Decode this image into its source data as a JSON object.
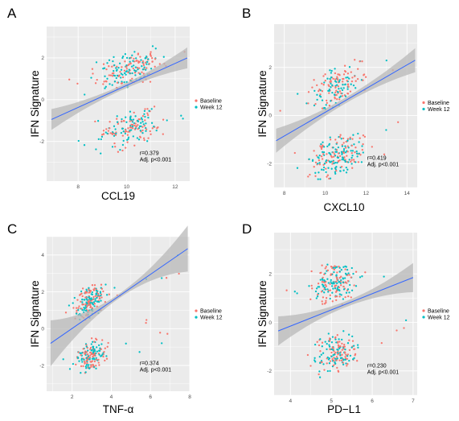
{
  "palette": {
    "baseline": "#F8766D",
    "week12": "#00BFC4",
    "fit": "#3366FF",
    "band": "#B8B8B8",
    "panel_bg": "#EBEBEB",
    "grid": "#FFFFFF"
  },
  "chart_data": [
    {
      "id": "A",
      "type": "scatter",
      "panel_label": "A",
      "xlabel": "CCL19",
      "ylabel": "IFN Signature",
      "xlim": [
        6.7,
        12.6
      ],
      "ylim": [
        -3.9,
        3.5
      ],
      "xticks": [
        8,
        10,
        12
      ],
      "yticks": [
        -2,
        0,
        2
      ],
      "x_center": 10.1,
      "x_spread": 1.05,
      "x_min": 7.0,
      "x_max": 12.4,
      "legend": [
        "Baseline",
        "Week 12"
      ],
      "fit": {
        "x0": 6.9,
        "y0": -0.95,
        "x1": 12.5,
        "y1": 2.0,
        "band_edge": 0.5,
        "band_mid": 0.12
      },
      "annotation": {
        "r": "r=0.379",
        "p": "Adj. p<0.001"
      }
    },
    {
      "id": "B",
      "type": "scatter",
      "panel_label": "B",
      "xlabel": "CXCL10",
      "ylabel": "IFN Signature",
      "xlim": [
        7.5,
        14.5
      ],
      "ylim": [
        -3.0,
        3.8
      ],
      "xticks": [
        8,
        10,
        12,
        14
      ],
      "yticks": [
        -2,
        0,
        2
      ],
      "x_center": 10.6,
      "x_spread": 1.1,
      "x_min": 7.8,
      "x_max": 14.2,
      "legend": [
        "Baseline",
        "Week 12"
      ],
      "fit": {
        "x0": 7.6,
        "y0": -1.05,
        "x1": 14.4,
        "y1": 2.3,
        "band_edge": 0.5,
        "band_mid": 0.12
      },
      "annotation": {
        "r": "r=0.419",
        "p": "Adj. p<0.001"
      }
    },
    {
      "id": "C",
      "type": "scatter",
      "panel_label": "C",
      "xlabel": "TNF-α",
      "ylabel": "IFN Signature",
      "xlim": [
        0.7,
        8.0
      ],
      "ylim": [
        -3.4,
        5.0
      ],
      "xticks": [
        2,
        4,
        6,
        8
      ],
      "yticks": [
        -2,
        0,
        2,
        4
      ],
      "x_center": 2.9,
      "x_spread": 0.6,
      "x_min": 1.5,
      "x_max": 7.6,
      "legend": [
        "Baseline",
        "Week 12"
      ],
      "fit": {
        "x0": 0.9,
        "y0": -0.8,
        "x1": 7.9,
        "y1": 4.35,
        "band_edge": 1.25,
        "band_mid": 0.12
      },
      "annotation": {
        "r": "r=0.374",
        "p": "Adj. p<0.001"
      }
    },
    {
      "id": "D",
      "type": "scatter",
      "panel_label": "D",
      "xlabel": "PD−L1",
      "ylabel": "IFN Signature",
      "xlim": [
        3.6,
        7.1
      ],
      "ylim": [
        -3.0,
        3.7
      ],
      "xticks": [
        4,
        5,
        6,
        7
      ],
      "yticks": [
        -2,
        0,
        2
      ],
      "x_center": 5.1,
      "x_spread": 0.45,
      "x_min": 3.85,
      "x_max": 6.9,
      "legend": [
        "Baseline",
        "Week 12"
      ],
      "fit": {
        "x0": 3.7,
        "y0": -0.35,
        "x1": 7.0,
        "y1": 1.85,
        "band_edge": 0.6,
        "band_mid": 0.12
      },
      "annotation": {
        "r": "r=0.230",
        "p": "Adj. p<0.001"
      }
    }
  ]
}
